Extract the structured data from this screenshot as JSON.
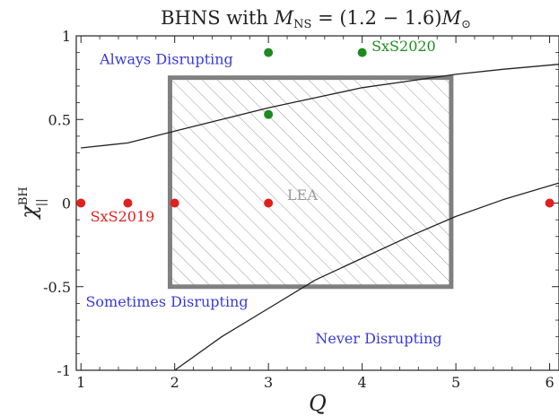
{
  "chart_data": {
    "type": "scatter",
    "title": "BHNS with M_NS = (1.2 − 1.6)M_⊙",
    "title_parts": {
      "prefix": "BHNS with ",
      "var": "M",
      "var_sub": "NS",
      "eq": " = (1.2 − 1.6)",
      "var2": "M",
      "var2_sub": "⊙"
    },
    "xlabel": "Q",
    "ylabel": "χ",
    "ylabel_sup": "BH",
    "ylabel_sub": "||",
    "xlim": [
      0.95,
      6.1
    ],
    "ylim": [
      -1,
      1
    ],
    "xticks": [
      1,
      2,
      3,
      4,
      5,
      6
    ],
    "xtick_labels": [
      "1",
      "2",
      "3",
      "4",
      "5",
      "6"
    ],
    "yticks": [
      -1,
      -0.5,
      0,
      0.5,
      1
    ],
    "ytick_labels": [
      "-1",
      "-0.5",
      "0",
      "0.5",
      "1"
    ],
    "grid": false,
    "series": [
      {
        "name": "SxS2019",
        "color": "#e0201e",
        "points": [
          [
            1.0,
            0.0
          ],
          [
            1.5,
            0.0
          ],
          [
            2.0,
            0.0
          ],
          [
            3.0,
            0.0
          ],
          [
            6.0,
            0.0
          ]
        ]
      },
      {
        "name": "SxS2020",
        "color": "#1f8a1f",
        "points": [
          [
            3.0,
            0.9
          ],
          [
            4.0,
            0.9
          ],
          [
            3.0,
            0.53
          ]
        ]
      }
    ],
    "curves": [
      {
        "label": "upper-boundary",
        "color": "#222222",
        "points": [
          [
            1.0,
            0.33
          ],
          [
            1.5,
            0.36
          ],
          [
            2.0,
            0.43
          ],
          [
            2.5,
            0.5
          ],
          [
            3.0,
            0.57
          ],
          [
            3.5,
            0.63
          ],
          [
            4.0,
            0.69
          ],
          [
            4.5,
            0.73
          ],
          [
            5.0,
            0.77
          ],
          [
            5.5,
            0.8
          ],
          [
            6.1,
            0.83
          ]
        ]
      },
      {
        "label": "lower-boundary",
        "color": "#222222",
        "points": [
          [
            2.0,
            -1.0
          ],
          [
            2.5,
            -0.8
          ],
          [
            3.0,
            -0.63
          ],
          [
            3.5,
            -0.46
          ],
          [
            4.0,
            -0.33
          ],
          [
            4.5,
            -0.2
          ],
          [
            5.0,
            -0.08
          ],
          [
            5.5,
            0.02
          ],
          [
            6.1,
            0.12
          ]
        ]
      }
    ],
    "lea_region": {
      "label": "LEA",
      "x": [
        1.95,
        4.95
      ],
      "y": [
        -0.5,
        0.75
      ],
      "edge_color": "#808080",
      "hatch": "diagonal"
    },
    "annotations": [
      {
        "text": "Always Disrupting",
        "x": 1.2,
        "y": 0.83,
        "color": "#3a3ad6"
      },
      {
        "text": "Sometimes Disrupting",
        "x": 1.05,
        "y": -0.62,
        "color": "#3a3ad6"
      },
      {
        "text": "Never Disrupting",
        "x": 3.5,
        "y": -0.84,
        "color": "#3a3ad6"
      },
      {
        "text": "SxS2019",
        "x": 1.1,
        "y": -0.11,
        "color": "#e0201e"
      },
      {
        "text": "SxS2020",
        "x": 4.1,
        "y": 0.91,
        "color": "#1f8a1f"
      },
      {
        "text": "LEA",
        "x": 3.2,
        "y": 0.02,
        "color": "#9a9a9a"
      }
    ]
  }
}
